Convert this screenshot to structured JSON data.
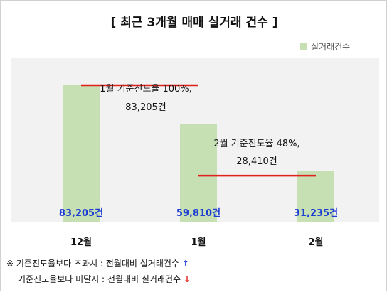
{
  "title": "[ 최근 3개월 매매 실거래 건수 ]",
  "legend": {
    "label": "실거래건수"
  },
  "colors": {
    "bar": "#c6e0b4",
    "value_label": "#1f3fd1",
    "line": "#e0221b",
    "plot_bg": "#f2f2f2"
  },
  "chart_data": {
    "type": "bar",
    "categories": [
      "12월",
      "1월",
      "2월"
    ],
    "series": [
      {
        "name": "실거래건수",
        "values": [
          83205,
          59810,
          31235
        ]
      }
    ],
    "value_labels": [
      "83,205건",
      "59,810건",
      "31,235건"
    ],
    "ylim": [
      0,
      100000
    ],
    "grid": false,
    "legend_position": "top-right",
    "annotations": [
      {
        "line1": "1월 기준진도율 100%,",
        "line2": "83,205건"
      },
      {
        "line1": "2월 기준진도율 48%,",
        "line2": "28,410건"
      }
    ]
  },
  "notes": [
    {
      "prefix": "※",
      "text": "기준진도율보다  초과시 : 전월대비 실거래건수",
      "arrow": "↑"
    },
    {
      "prefix": "",
      "text": "기준진도율보다  미달시 : 전월대비 실거래건수",
      "arrow": "↓"
    }
  ]
}
